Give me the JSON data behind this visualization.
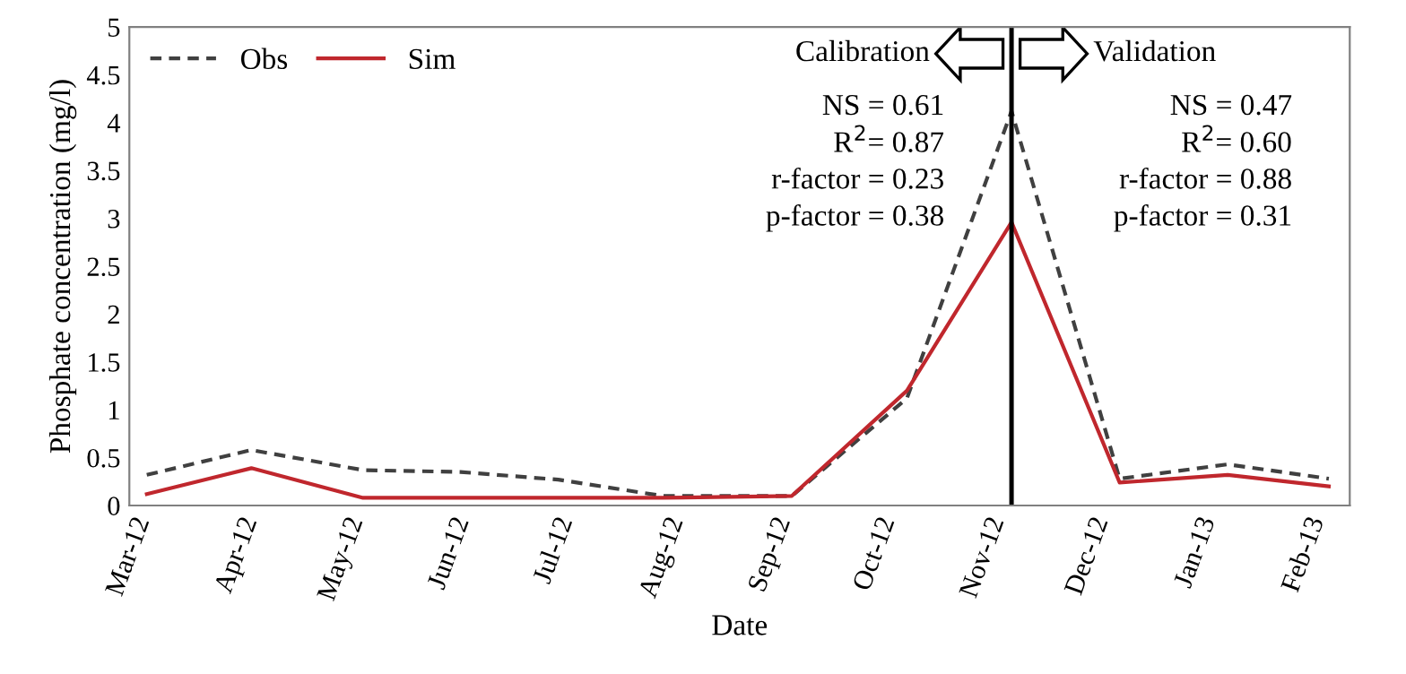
{
  "chart_data": {
    "type": "line",
    "xlabel": "Date",
    "ylabel": "Phosphate concentration (mg/l)",
    "x": [
      "2012-03-06",
      "2012-04-05",
      "2012-05-07",
      "2012-06-04",
      "2012-07-02",
      "2012-08-01",
      "2012-09-07",
      "2012-10-10",
      "2012-11-09",
      "2012-12-10",
      "2013-01-10",
      "2013-02-08"
    ],
    "series": [
      {
        "name": "Obs",
        "color": "#404040",
        "line_style": "dashed",
        "values": [
          0.32,
          0.58,
          0.37,
          0.35,
          0.27,
          0.1,
          0.1,
          1.12,
          4.12,
          0.28,
          0.43,
          0.28
        ]
      },
      {
        "name": "Sim",
        "color": "#c0272d",
        "line_style": "solid",
        "values": [
          0.12,
          0.39,
          0.08,
          0.08,
          0.08,
          0.08,
          0.1,
          1.2,
          2.96,
          0.24,
          0.32,
          0.2
        ]
      }
    ],
    "xlim": [
      "2012-03-01",
      "2013-02-14"
    ],
    "xticks": [
      {
        "value": "2012-03-01",
        "label": "Mar-12"
      },
      {
        "value": "2012-04-01",
        "label": "Apr-12"
      },
      {
        "value": "2012-05-01",
        "label": "May-12"
      },
      {
        "value": "2012-06-01",
        "label": "Jun-12"
      },
      {
        "value": "2012-07-01",
        "label": "Jul-12"
      },
      {
        "value": "2012-08-01",
        "label": "Aug-12"
      },
      {
        "value": "2012-09-01",
        "label": "Sep-12"
      },
      {
        "value": "2012-10-01",
        "label": "Oct-12"
      },
      {
        "value": "2012-11-01",
        "label": "Nov-12"
      },
      {
        "value": "2012-12-01",
        "label": "Dec-12"
      },
      {
        "value": "2013-01-01",
        "label": "Jan-13"
      },
      {
        "value": "2013-02-01",
        "label": "Feb-13"
      }
    ],
    "ylim": [
      0,
      5
    ],
    "yticks": [
      0,
      0.5,
      1,
      1.5,
      2,
      2.5,
      3,
      3.5,
      4,
      4.5,
      5
    ],
    "ref_lines": [
      {
        "axis": "x",
        "value": "2012-11-09",
        "color": "#000000",
        "line_style": "solid"
      }
    ],
    "annotations": [
      "Calibration",
      "Validation",
      "NS = 0.61\nR$^{2}$= 0.87\nr-factor = 0.23\np-factor = 0.38",
      "NS = 0.47\nR$^{2}$= 0.60\nr-factor = 0.88\np-factor = 0.31"
    ],
    "grid": false,
    "legend": "top left",
    "marker": "none"
  }
}
